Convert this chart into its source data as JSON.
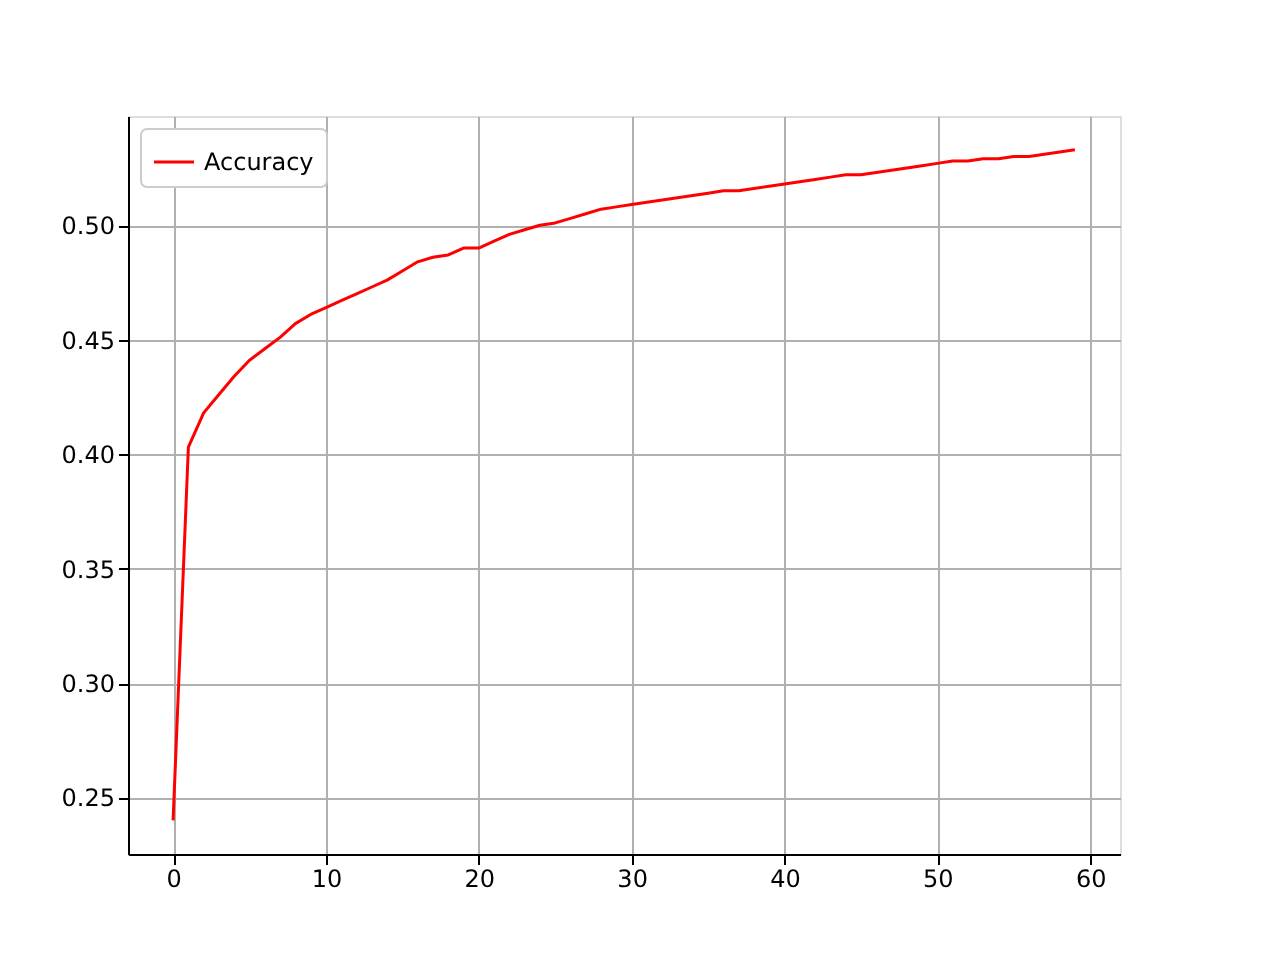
{
  "chart_data": {
    "type": "line",
    "x": [
      0,
      1,
      2,
      3,
      4,
      5,
      6,
      7,
      8,
      9,
      10,
      11,
      12,
      13,
      14,
      15,
      16,
      17,
      18,
      19,
      20,
      21,
      22,
      23,
      24,
      25,
      26,
      27,
      28,
      29,
      30,
      31,
      32,
      33,
      34,
      35,
      36,
      37,
      38,
      39,
      40,
      41,
      42,
      43,
      44,
      45,
      46,
      47,
      48,
      49,
      50,
      51,
      52,
      53,
      54,
      55,
      56,
      57,
      58,
      59
    ],
    "series": [
      {
        "name": "Accuracy",
        "color": "#ff0000",
        "values": [
          0.24,
          0.403,
          0.418,
          0.426,
          0.434,
          0.441,
          0.446,
          0.451,
          0.457,
          0.461,
          0.464,
          0.467,
          0.47,
          0.473,
          0.476,
          0.48,
          0.484,
          0.486,
          0.487,
          0.49,
          0.49,
          0.493,
          0.496,
          0.498,
          0.5,
          0.501,
          0.503,
          0.505,
          0.507,
          0.508,
          0.509,
          0.51,
          0.511,
          0.512,
          0.513,
          0.514,
          0.515,
          0.515,
          0.516,
          0.517,
          0.518,
          0.519,
          0.52,
          0.521,
          0.522,
          0.522,
          0.523,
          0.524,
          0.525,
          0.526,
          0.527,
          0.528,
          0.528,
          0.529,
          0.529,
          0.53,
          0.53,
          0.531,
          0.532,
          0.533
        ]
      }
    ],
    "xlim": [
      -2.95,
      61.95
    ],
    "ylim": [
      0.2253,
      0.5477
    ],
    "xticks": [
      0,
      10,
      20,
      30,
      40,
      50,
      60
    ],
    "yticks": [
      {
        "value": 0.25,
        "label": "0.25"
      },
      {
        "value": 0.3,
        "label": "0.30"
      },
      {
        "value": 0.35,
        "label": "0.35"
      },
      {
        "value": 0.4,
        "label": "0.40"
      },
      {
        "value": 0.45,
        "label": "0.45"
      },
      {
        "value": 0.5,
        "label": "0.50"
      }
    ],
    "grid": true,
    "legend": "top left",
    "line_style": "solid",
    "marker": "none"
  }
}
